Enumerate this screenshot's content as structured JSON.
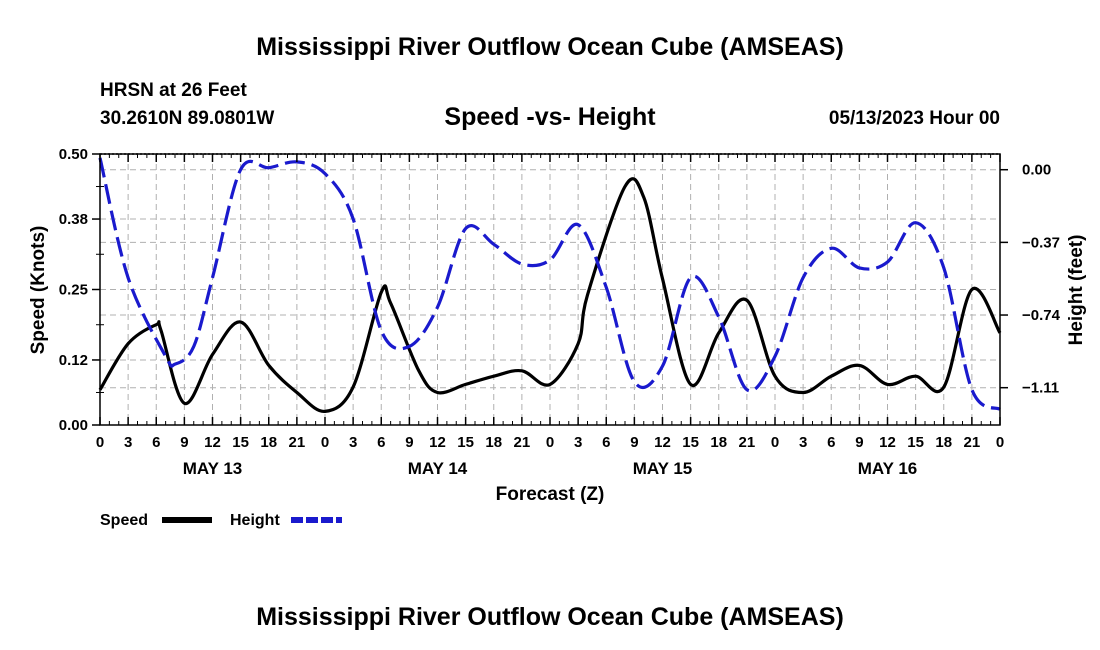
{
  "header": {
    "title": "Mississippi River Outflow Ocean Cube (AMSEAS)",
    "station": "HRSN at 26 Feet",
    "coords": "30.2610N  89.0801W",
    "subtitle": "Speed -vs- Height",
    "datetime": "05/13/2023 Hour 00",
    "bottom_title": "Mississippi River Outflow Ocean Cube (AMSEAS)"
  },
  "chart_data": {
    "type": "line",
    "title": "Speed -vs- Height",
    "xlabel": "Forecast (Z)",
    "ylabel_left": "Speed (Knots)",
    "ylabel_right": "Height (feet)",
    "x_range_hours": [
      0,
      96
    ],
    "x_tick_step_hours": 3,
    "x_tick_labels": [
      "0",
      "3",
      "6",
      "9",
      "12",
      "15",
      "18",
      "21",
      "0",
      "3",
      "6",
      "9",
      "12",
      "15",
      "18",
      "21",
      "0",
      "3",
      "6",
      "9",
      "12",
      "15",
      "18",
      "21",
      "0",
      "3",
      "6",
      "9",
      "12",
      "15",
      "18",
      "21",
      "0"
    ],
    "day_labels": [
      {
        "label": "MAY 13",
        "hour": 12
      },
      {
        "label": "MAY 14",
        "hour": 36
      },
      {
        "label": "MAY 15",
        "hour": 60
      },
      {
        "label": "MAY 16",
        "hour": 84
      }
    ],
    "ylim_left": [
      0,
      0.5
    ],
    "yticks_left": [
      0.0,
      0.12,
      0.25,
      0.38,
      0.5
    ],
    "ytick_labels_left": [
      "0.00",
      "0.12",
      "0.25",
      "0.38",
      "0.50"
    ],
    "ylim_right": [
      -1.3,
      0.08
    ],
    "yticks_right": [
      0.0,
      -0.37,
      -0.74,
      -1.11
    ],
    "ytick_labels_right": [
      "0.00",
      "−0.37",
      "−0.74",
      "−1.11"
    ],
    "grid": true,
    "series": [
      {
        "name": "Speed",
        "axis": "left",
        "color": "#000000",
        "style": "solid",
        "x": [
          0,
          3,
          6,
          6.5,
          9,
          12,
          15,
          18,
          21,
          24,
          27,
          30,
          31,
          34,
          36,
          39,
          42,
          45,
          48,
          51,
          52,
          56,
          58,
          60,
          63,
          66,
          69,
          72,
          75,
          78,
          81,
          84,
          87,
          90,
          93,
          96
        ],
        "y": [
          0.065,
          0.15,
          0.185,
          0.175,
          0.04,
          0.13,
          0.19,
          0.11,
          0.06,
          0.025,
          0.07,
          0.245,
          0.225,
          0.1,
          0.06,
          0.075,
          0.09,
          0.1,
          0.075,
          0.15,
          0.24,
          0.44,
          0.42,
          0.27,
          0.075,
          0.17,
          0.23,
          0.09,
          0.06,
          0.09,
          0.11,
          0.075,
          0.09,
          0.07,
          0.25,
          0.17
        ]
      },
      {
        "name": "Height",
        "axis": "right",
        "color": "#1a1acd",
        "style": "dashed",
        "x": [
          0,
          3,
          7,
          8,
          10,
          12,
          15,
          18,
          21,
          24,
          27,
          30,
          33,
          36,
          39,
          42,
          45,
          48,
          51,
          54,
          57,
          60,
          63,
          66,
          69,
          72,
          75,
          78,
          81,
          84,
          87,
          90,
          93,
          96
        ],
        "y": [
          0.06,
          -0.55,
          -0.95,
          -0.99,
          -0.9,
          -0.55,
          0.0,
          0.01,
          0.04,
          -0.02,
          -0.25,
          -0.82,
          -0.9,
          -0.7,
          -0.3,
          -0.38,
          -0.48,
          -0.46,
          -0.28,
          -0.6,
          -1.08,
          -1.0,
          -0.55,
          -0.75,
          -1.12,
          -0.95,
          -0.55,
          -0.4,
          -0.5,
          -0.47,
          -0.27,
          -0.5,
          -1.12,
          -1.22
        ]
      }
    ]
  },
  "legend": {
    "speed_label": "Speed",
    "height_label": "Height",
    "speed_color": "#000000",
    "height_color": "#1a1acd"
  }
}
